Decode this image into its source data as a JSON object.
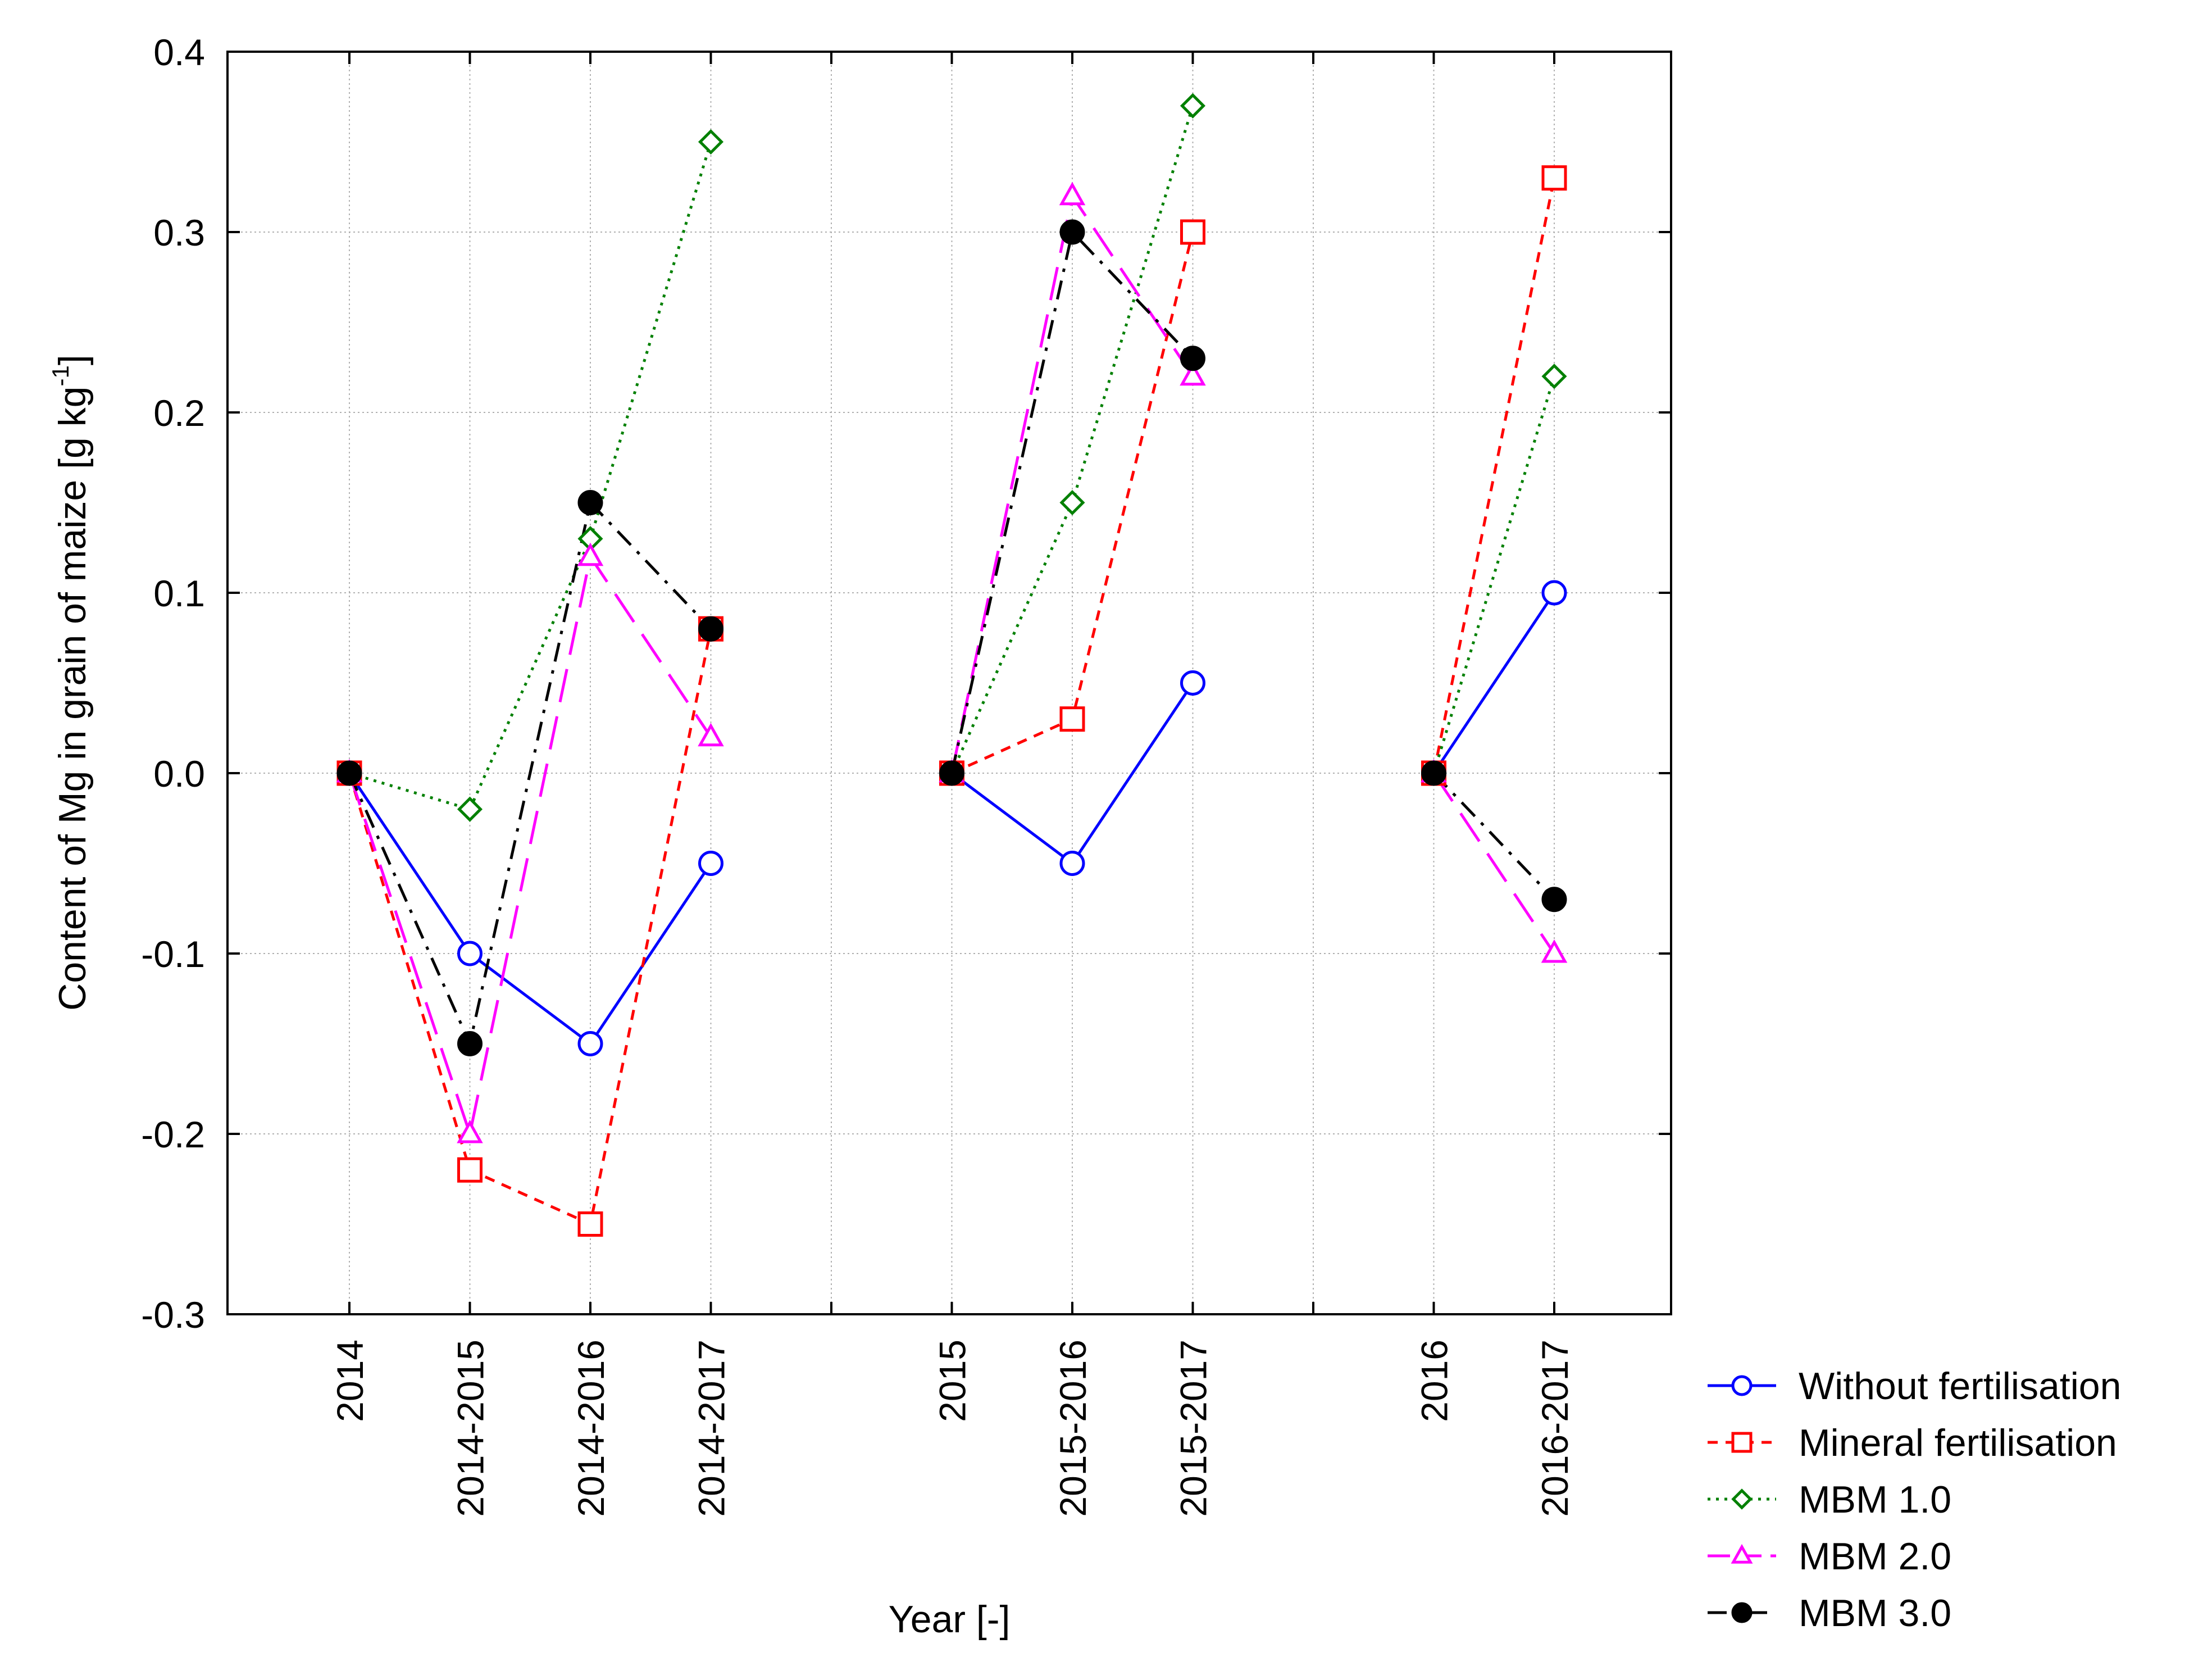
{
  "chart_data": {
    "type": "line",
    "title": "",
    "xlabel": "Year [-]",
    "ylabel": "Content of Mg in grain of maize [g kg",
    "ylabel_sup": "-1",
    "ylabel_suffix": "]",
    "ylim": [
      -0.3,
      0.4
    ],
    "yticks": [
      {
        "value": 0.4,
        "label": "0.4"
      },
      {
        "value": 0.3,
        "label": "0.3"
      },
      {
        "value": 0.2,
        "label": "0.2"
      },
      {
        "value": 0.1,
        "label": "0.1"
      },
      {
        "value": 0.0,
        "label": "0.0"
      },
      {
        "value": -0.1,
        "label": "-0.1"
      },
      {
        "value": -0.2,
        "label": "-0.2"
      },
      {
        "value": -0.3,
        "label": "-0.3"
      }
    ],
    "xlim": [
      0,
      11
    ],
    "categories": [
      {
        "pos": 1,
        "label": "2014"
      },
      {
        "pos": 2,
        "label": "2014-2015"
      },
      {
        "pos": 3,
        "label": "2014-2016"
      },
      {
        "pos": 4,
        "label": "2014-2017"
      },
      {
        "pos": 6,
        "label": "2015"
      },
      {
        "pos": 7,
        "label": "2015-2016"
      },
      {
        "pos": 8,
        "label": "2015-2017"
      },
      {
        "pos": 10,
        "label": "2016"
      },
      {
        "pos": 11,
        "label": "2016-2017"
      }
    ],
    "grid": true,
    "legend_position": "bottom-right",
    "series": [
      {
        "name": "Without fertilisation",
        "color": "#0000ff",
        "marker": "circle-open",
        "line": "solid",
        "segments": [
          {
            "x": [
              1,
              2,
              3,
              4
            ],
            "y": [
              0.0,
              -0.1,
              -0.15,
              -0.05
            ]
          },
          {
            "x": [
              6,
              7,
              8
            ],
            "y": [
              0.0,
              -0.05,
              0.05
            ]
          },
          {
            "x": [
              10,
              11
            ],
            "y": [
              0.0,
              0.1
            ]
          }
        ]
      },
      {
        "name": "Mineral fertilisation",
        "color": "#ff0000",
        "marker": "square-open",
        "line": "short-dash",
        "segments": [
          {
            "x": [
              1,
              2,
              3,
              4
            ],
            "y": [
              0.0,
              -0.22,
              -0.25,
              0.08
            ]
          },
          {
            "x": [
              6,
              7,
              8
            ],
            "y": [
              0.0,
              0.03,
              0.3
            ]
          },
          {
            "x": [
              10,
              11
            ],
            "y": [
              0.0,
              0.33
            ]
          }
        ]
      },
      {
        "name": "MBM 1.0",
        "color": "#008000",
        "marker": "diamond-open",
        "line": "dotted",
        "segments": [
          {
            "x": [
              1,
              2,
              3,
              4
            ],
            "y": [
              0.0,
              -0.02,
              0.13,
              0.35
            ]
          },
          {
            "x": [
              6,
              7,
              8
            ],
            "y": [
              0.0,
              0.15,
              0.37
            ]
          },
          {
            "x": [
              10,
              11
            ],
            "y": [
              0.0,
              0.22
            ]
          }
        ]
      },
      {
        "name": "MBM 2.0",
        "color": "#ff00ff",
        "marker": "triangle-open",
        "line": "long-dash",
        "segments": [
          {
            "x": [
              1,
              2,
              3,
              4
            ],
            "y": [
              0.0,
              -0.2,
              0.12,
              0.02
            ]
          },
          {
            "x": [
              6,
              7,
              8
            ],
            "y": [
              0.0,
              0.32,
              0.22
            ]
          },
          {
            "x": [
              10,
              11
            ],
            "y": [
              0.0,
              -0.1
            ]
          }
        ]
      },
      {
        "name": "MBM 3.0",
        "color": "#000000",
        "marker": "circle-filled",
        "line": "dash-dot",
        "segments": [
          {
            "x": [
              1,
              2,
              3,
              4
            ],
            "y": [
              0.0,
              -0.15,
              0.15,
              0.08
            ]
          },
          {
            "x": [
              6,
              7,
              8
            ],
            "y": [
              0.0,
              0.3,
              0.23
            ]
          },
          {
            "x": [
              10,
              11
            ],
            "y": [
              0.0,
              -0.07
            ]
          }
        ]
      }
    ]
  }
}
